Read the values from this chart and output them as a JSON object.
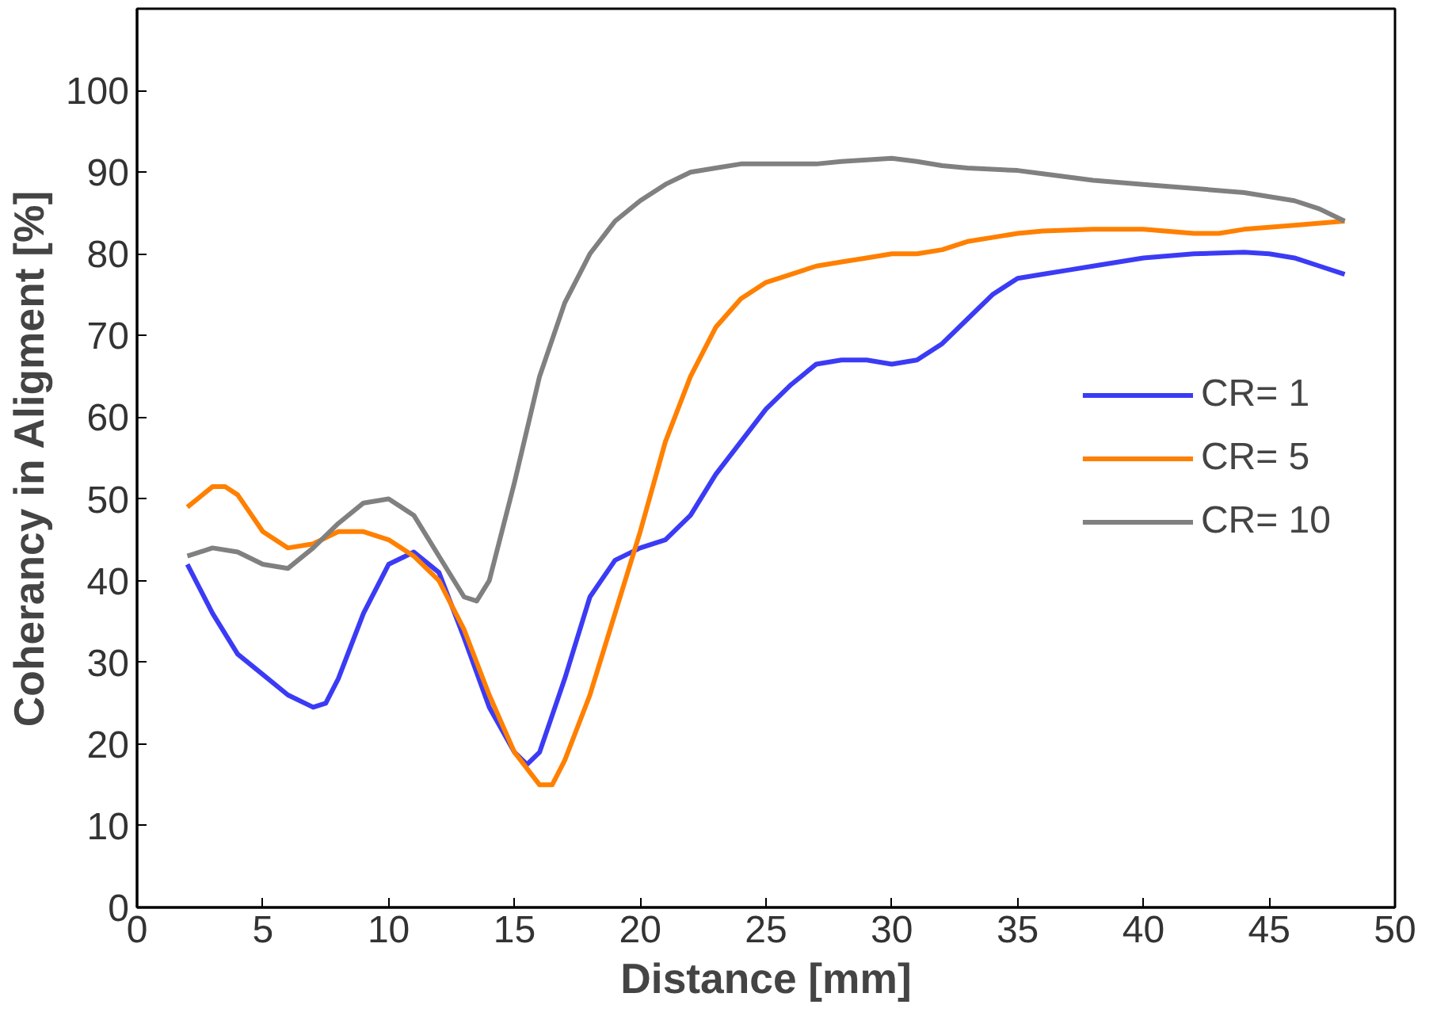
{
  "chart_data": {
    "type": "line",
    "xlabel": "Distance [mm]",
    "ylabel": "Coherancy in Aligment [%]",
    "xlim": [
      0,
      50
    ],
    "ylim": [
      0,
      110
    ],
    "xticks": [
      0,
      5,
      10,
      15,
      20,
      25,
      30,
      35,
      40,
      45,
      50
    ],
    "yticks": [
      0,
      10,
      20,
      30,
      40,
      50,
      60,
      70,
      80,
      90,
      100
    ],
    "grid": false,
    "legend": "right",
    "marker": "none",
    "line_style": "solid",
    "series": [
      {
        "name": "CR= 1",
        "color": "#3b3bf5",
        "x": [
          2,
          3,
          4,
          5,
          6,
          7,
          7.5,
          8,
          9,
          10,
          11,
          12,
          13,
          14,
          15,
          15.5,
          16,
          17,
          18,
          19,
          20,
          21,
          22,
          23,
          24,
          25,
          26,
          27,
          28,
          29,
          30,
          31,
          32,
          33,
          34,
          35,
          36,
          37,
          38,
          40,
          42,
          44,
          45,
          46,
          47,
          48
        ],
        "values": [
          42,
          36,
          31,
          28.5,
          26,
          24.5,
          25,
          28,
          36,
          42,
          43.5,
          41,
          33,
          24.5,
          19,
          17.5,
          19,
          28,
          38,
          42.5,
          44,
          45,
          48,
          53,
          57,
          61,
          64,
          66.5,
          67,
          67,
          66.5,
          67,
          69,
          72,
          75,
          77,
          77.5,
          78,
          78.5,
          79.5,
          80,
          80.2,
          80,
          79.5,
          78.5,
          77.5
        ]
      },
      {
        "name": "CR= 5",
        "color": "#ff8000",
        "x": [
          2,
          3,
          3.5,
          4,
          5,
          6,
          7,
          8,
          9,
          10,
          11,
          12,
          13,
          14,
          15,
          16,
          16.5,
          17,
          18,
          19,
          20,
          21,
          22,
          23,
          24,
          25,
          26,
          27,
          28,
          29,
          30,
          31,
          32,
          33,
          34,
          35,
          36,
          38,
          40,
          42,
          43,
          44,
          46,
          48
        ],
        "values": [
          49,
          51.5,
          51.5,
          50.5,
          46,
          44,
          44.5,
          46,
          46,
          45,
          43,
          40,
          34,
          26,
          19,
          15,
          15,
          18,
          26,
          36,
          46,
          57,
          65,
          71,
          74.5,
          76.5,
          77.5,
          78.5,
          79,
          79.5,
          80,
          80,
          80.5,
          81.5,
          82,
          82.5,
          82.8,
          83,
          83,
          82.5,
          82.5,
          83,
          83.5,
          84
        ]
      },
      {
        "name": "CR= 10",
        "color": "#808080",
        "x": [
          2,
          3,
          4,
          5,
          6,
          7,
          8,
          9,
          10,
          11,
          12,
          13,
          13.5,
          14,
          15,
          16,
          17,
          18,
          19,
          20,
          21,
          22,
          23,
          24,
          25,
          26,
          27,
          28,
          29,
          30,
          31,
          32,
          33,
          35,
          36,
          38,
          40,
          42,
          44,
          46,
          47,
          48
        ],
        "values": [
          43,
          44,
          43.5,
          42,
          41.5,
          44,
          47,
          49.5,
          50,
          48,
          43,
          38,
          37.5,
          40,
          52,
          65,
          74,
          80,
          84,
          86.5,
          88.5,
          90,
          90.5,
          91,
          91,
          91,
          91,
          91.3,
          91.5,
          91.7,
          91.3,
          90.8,
          90.5,
          90.2,
          89.8,
          89,
          88.5,
          88,
          87.5,
          86.5,
          85.5,
          84
        ]
      }
    ]
  }
}
